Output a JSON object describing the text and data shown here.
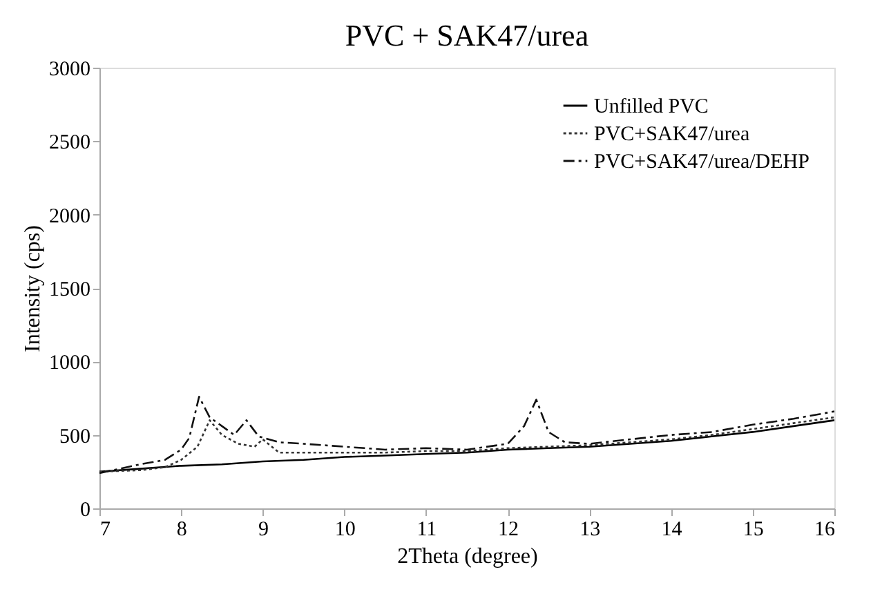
{
  "chart_data": {
    "type": "line",
    "title": "PVC + SAK47/urea",
    "xlabel": "2Theta (degree)",
    "ylabel": "Intensity (cps)",
    "xlim": [
      7,
      16
    ],
    "xticks": [
      7,
      8,
      9,
      10,
      11,
      12,
      13,
      14,
      15,
      16
    ],
    "ylim": [
      0,
      3000
    ],
    "yticks": [
      0,
      500,
      1000,
      1500,
      2000,
      2500,
      3000
    ],
    "grid": false,
    "legend": "top right",
    "marker": "none",
    "series": [
      {
        "name": "Unfilled PVC",
        "color": "#000000",
        "line_style": "solid",
        "x": [
          7,
          7.5,
          8,
          8.5,
          9,
          9.5,
          10,
          10.5,
          11,
          11.5,
          12,
          12.5,
          13,
          13.5,
          14,
          14.5,
          15,
          15.5,
          16
        ],
        "values": [
          250,
          270,
          290,
          300,
          320,
          330,
          350,
          360,
          370,
          380,
          400,
          410,
          420,
          440,
          460,
          490,
          520,
          560,
          600
        ]
      },
      {
        "name": "PVC+SAK47/urea",
        "color": "#333333",
        "line_style": "dotted",
        "x": [
          7,
          7.5,
          7.8,
          8,
          8.2,
          8.35,
          8.5,
          8.7,
          8.9,
          9,
          9.2,
          9.5,
          10,
          10.5,
          11,
          11.5,
          12,
          12.5,
          13,
          13.5,
          14,
          14.5,
          15,
          15.5,
          16
        ],
        "values": [
          250,
          260,
          280,
          330,
          420,
          600,
          500,
          440,
          420,
          470,
          380,
          380,
          380,
          380,
          390,
          390,
          410,
          420,
          430,
          450,
          470,
          500,
          540,
          580,
          620
        ]
      },
      {
        "name": "PVC+SAK47/urea/DEHP",
        "color": "#111111",
        "line_style": "dashed",
        "x": [
          7,
          7.5,
          7.8,
          8,
          8.1,
          8.22,
          8.35,
          8.5,
          8.65,
          8.8,
          8.95,
          9.2,
          9.5,
          10,
          10.5,
          11,
          11.5,
          12,
          12.2,
          12.35,
          12.5,
          12.7,
          13,
          13.5,
          14,
          14.5,
          15,
          15.5,
          16
        ],
        "values": [
          240,
          300,
          330,
          400,
          480,
          760,
          620,
          560,
          500,
          600,
          490,
          450,
          440,
          420,
          400,
          410,
          400,
          440,
          560,
          740,
          520,
          450,
          440,
          470,
          500,
          520,
          570,
          610,
          660
        ]
      }
    ]
  }
}
